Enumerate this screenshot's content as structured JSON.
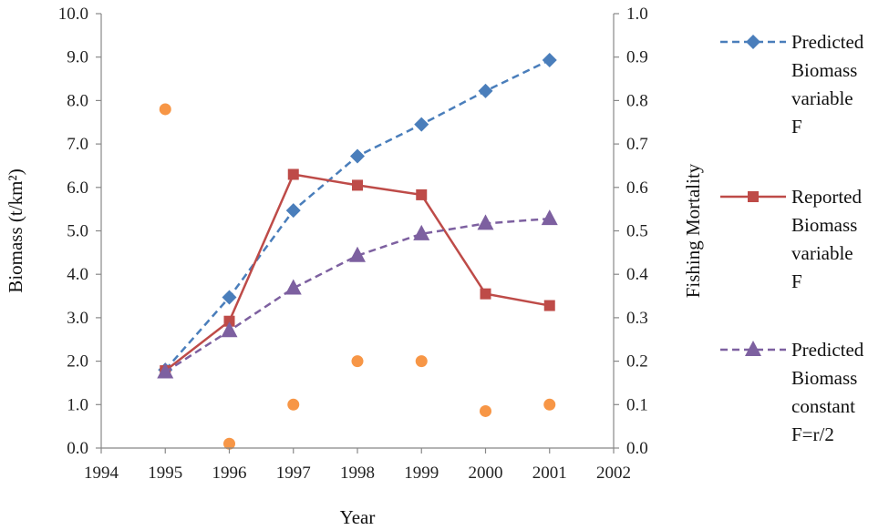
{
  "chart_data": {
    "type": "line",
    "x_label": "Year",
    "y_left_label": "Biomass (t/km²)",
    "y_right_label": "Fishing Mortality",
    "x_range": [
      1994,
      2002
    ],
    "x_ticks": [
      "1994",
      "1995",
      "1996",
      "1997",
      "1998",
      "1999",
      "2000",
      "2001",
      "2002"
    ],
    "y_left_range": [
      0,
      10
    ],
    "y_left_ticks": [
      "0.0",
      "1.0",
      "2.0",
      "3.0",
      "4.0",
      "5.0",
      "6.0",
      "7.0",
      "8.0",
      "9.0",
      "10.0"
    ],
    "y_right_range": [
      0,
      1
    ],
    "y_right_ticks": [
      "0.0",
      "0.1",
      "0.2",
      "0.3",
      "0.4",
      "0.5",
      "0.6",
      "0.7",
      "0.8",
      "0.9",
      "1.0"
    ],
    "grid": false,
    "legend_position": "right",
    "series": [
      {
        "name": "Predicted Biomass variable F",
        "legend_lines": [
          "Predicted",
          "Biomass",
          "variable",
          "F"
        ],
        "axis": "left",
        "style": "dashed",
        "marker": "diamond",
        "color": "#4a7ebb",
        "x": [
          1995,
          1996,
          1997,
          1998,
          1999,
          2000,
          2001
        ],
        "y": [
          1.8,
          3.47,
          5.47,
          6.72,
          7.45,
          8.22,
          8.93
        ]
      },
      {
        "name": "Reported Biomass variable F",
        "legend_lines": [
          "Reported",
          "Biomass",
          "variable",
          "F"
        ],
        "axis": "left",
        "style": "solid",
        "marker": "square",
        "color": "#be4b48",
        "x": [
          1995,
          1996,
          1997,
          1998,
          1999,
          2000,
          2001
        ],
        "y": [
          1.78,
          2.92,
          6.3,
          6.05,
          5.83,
          3.55,
          3.28
        ]
      },
      {
        "name": "Predicted Biomass constant F=r/2",
        "legend_lines": [
          "Predicted",
          "Biomass",
          "constant",
          "F=r/2"
        ],
        "axis": "left",
        "style": "dashed",
        "marker": "triangle",
        "color": "#7d60a0",
        "x": [
          1995,
          1996,
          1997,
          1998,
          1999,
          2000,
          2001
        ],
        "y": [
          1.75,
          2.7,
          3.68,
          4.43,
          4.93,
          5.17,
          5.28
        ]
      },
      {
        "name": "",
        "axis": "right",
        "style": "none",
        "marker": "circle",
        "color": "#f79646",
        "x": [
          1995,
          1996,
          1997,
          1998,
          1999,
          2000,
          2001
        ],
        "y": [
          0.78,
          0.01,
          0.1,
          0.2,
          0.2,
          0.085,
          0.1
        ]
      }
    ]
  }
}
